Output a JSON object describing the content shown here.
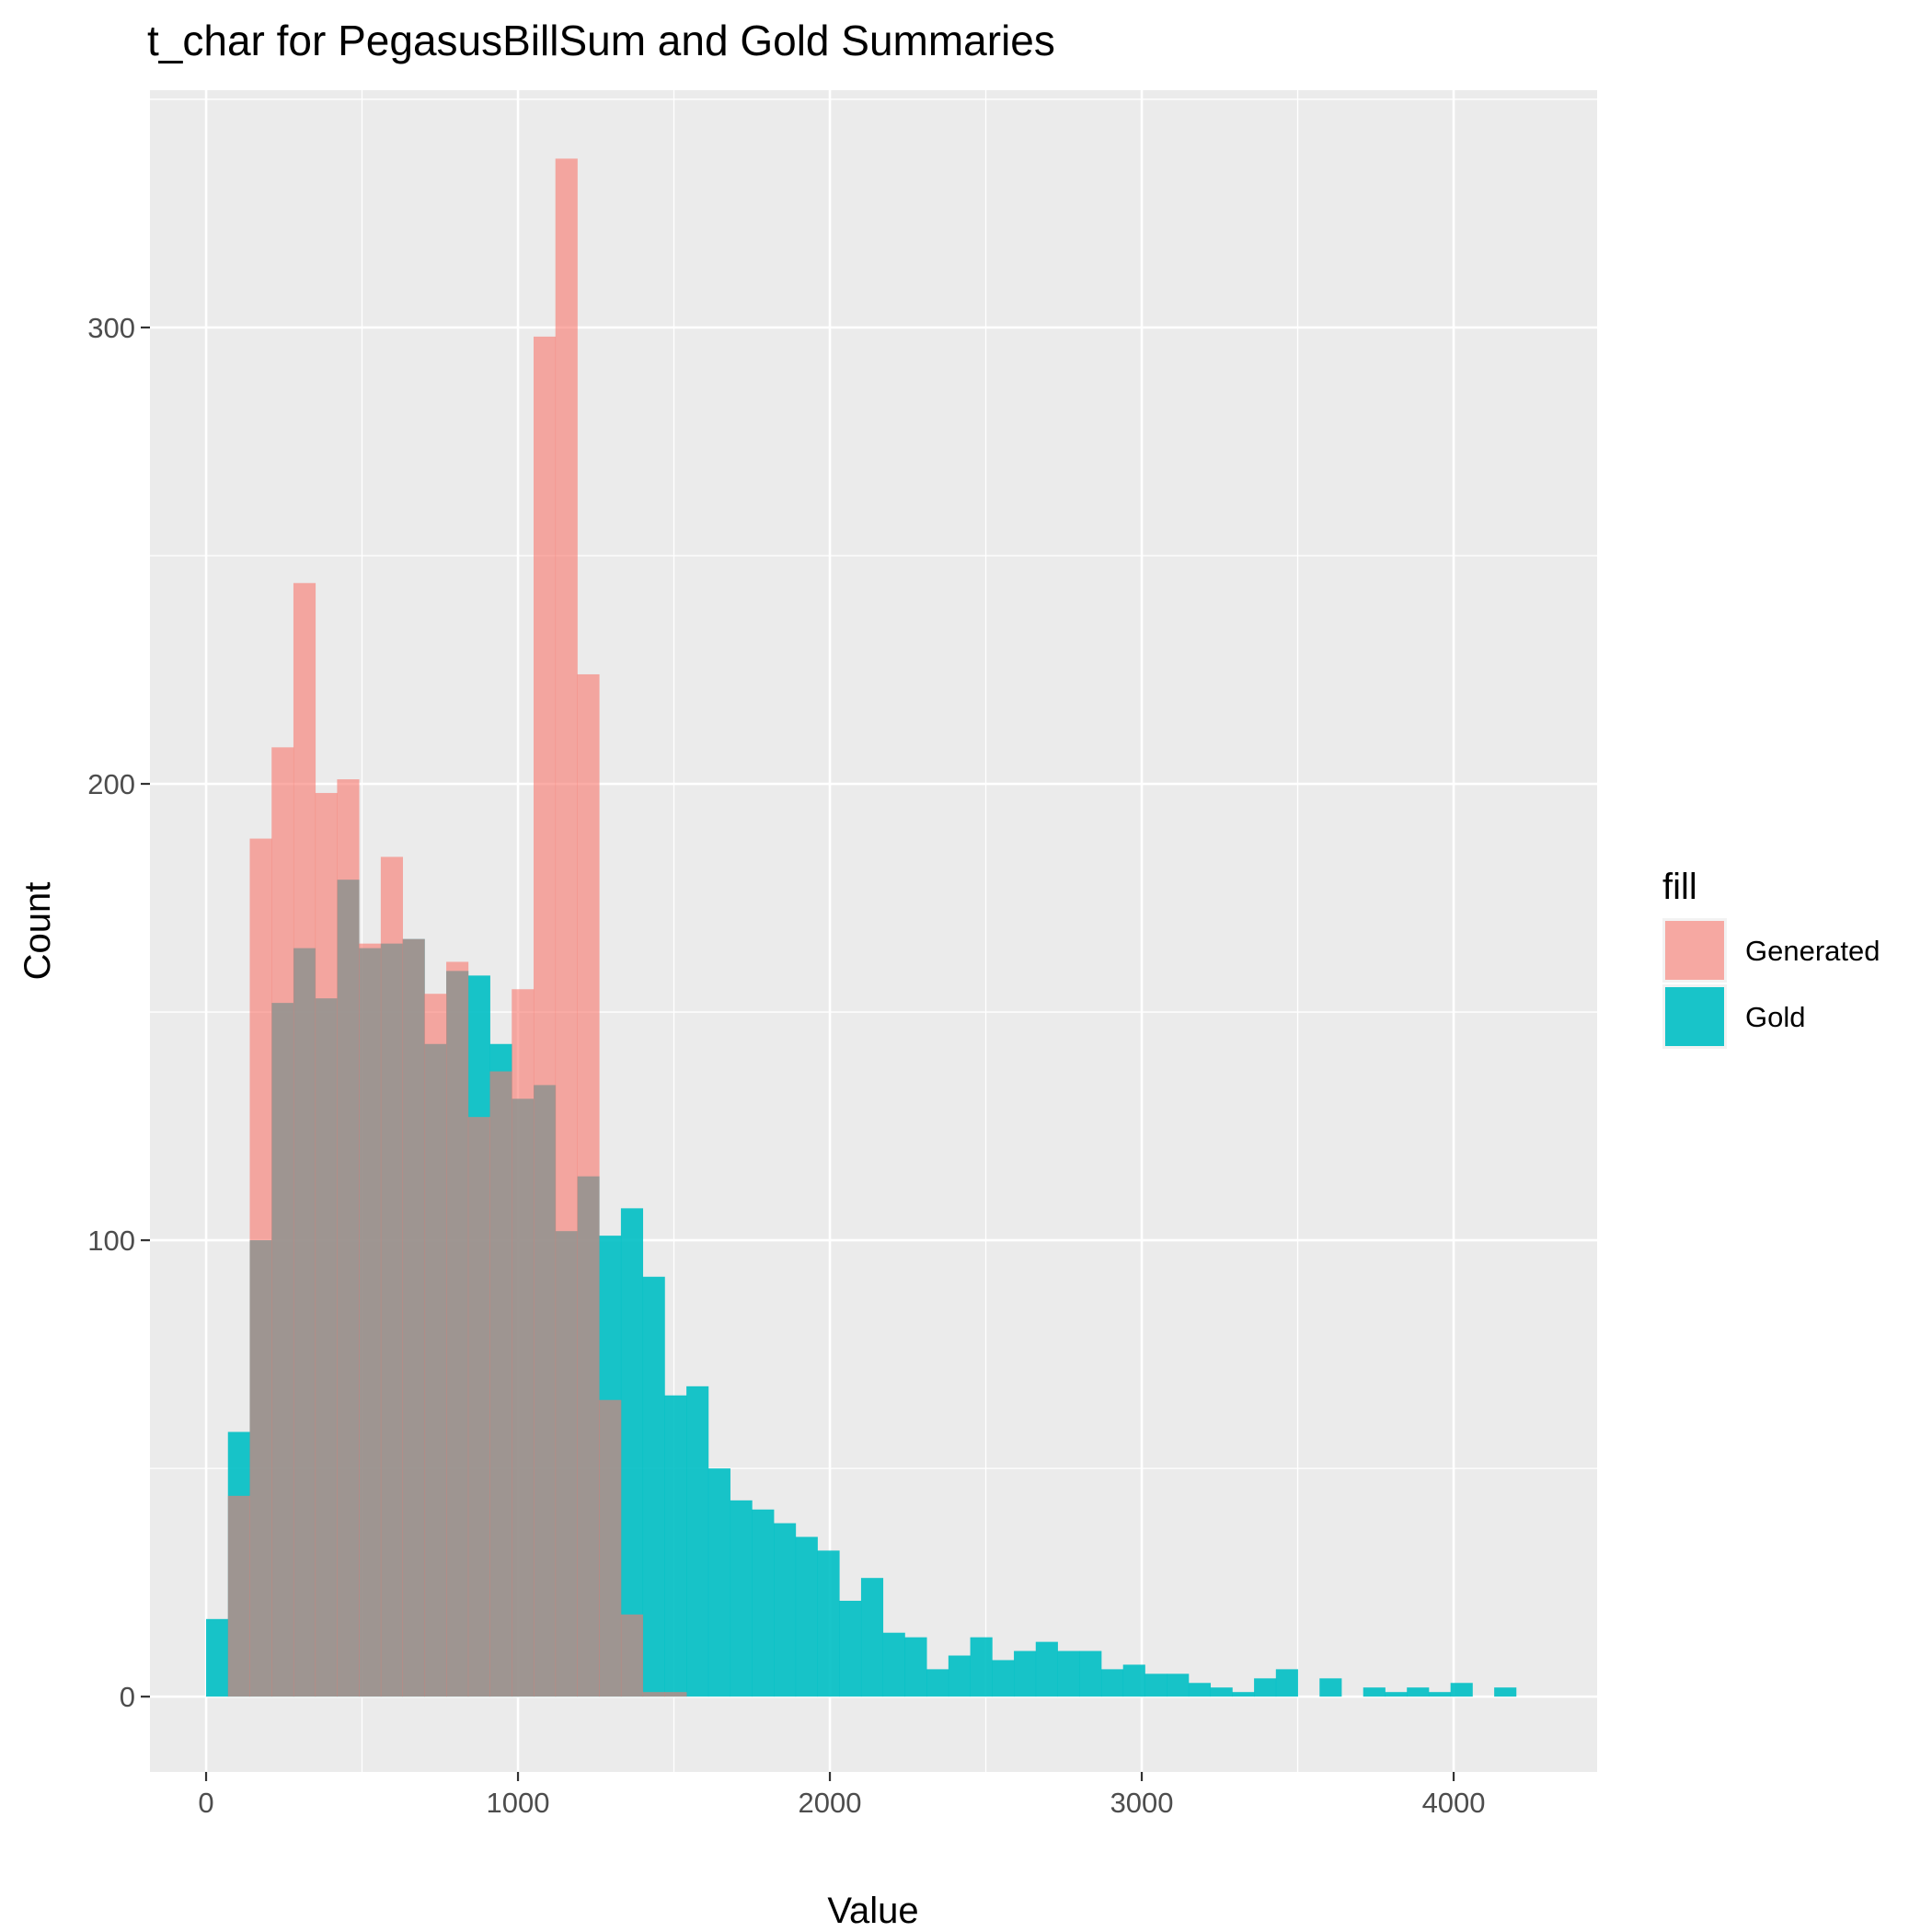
{
  "chart_data": {
    "type": "bar",
    "title": "t_char for PegasusBillSum and Gold Summaries",
    "xlabel": "Value",
    "ylabel": "Count",
    "xlim": [
      -180,
      4460
    ],
    "ylim": [
      -16.5,
      352
    ],
    "x_ticks": [
      0,
      1000,
      2000,
      3000,
      4000
    ],
    "x_tick_labels": [
      "0",
      "1000",
      "2000",
      "3000",
      "4000"
    ],
    "y_ticks": [
      0,
      100,
      200,
      300
    ],
    "y_tick_labels": [
      "0",
      "100",
      "200",
      "300"
    ],
    "grid": true,
    "legend_title": "fill",
    "legend_position": "right",
    "bin_width": 70,
    "series": [
      {
        "name": "Generated",
        "color": "#F8766D",
        "opacity": 0.6,
        "bins": [
          [
            105,
            44
          ],
          [
            175,
            188
          ],
          [
            245,
            208
          ],
          [
            315,
            244
          ],
          [
            385,
            198
          ],
          [
            455,
            201
          ],
          [
            525,
            165
          ],
          [
            595,
            184
          ],
          [
            665,
            166
          ],
          [
            735,
            154
          ],
          [
            805,
            161
          ],
          [
            875,
            127
          ],
          [
            945,
            137
          ],
          [
            1015,
            155
          ],
          [
            1085,
            298
          ],
          [
            1155,
            337
          ],
          [
            1225,
            224
          ],
          [
            1295,
            65
          ],
          [
            1365,
            18
          ],
          [
            1435,
            1
          ],
          [
            1505,
            1
          ]
        ]
      },
      {
        "name": "Gold",
        "color": "#00BFC4",
        "opacity": 0.9,
        "bins": [
          [
            35,
            17
          ],
          [
            105,
            58
          ],
          [
            175,
            100
          ],
          [
            245,
            152
          ],
          [
            315,
            164
          ],
          [
            385,
            153
          ],
          [
            455,
            179
          ],
          [
            525,
            164
          ],
          [
            595,
            165
          ],
          [
            665,
            166
          ],
          [
            735,
            143
          ],
          [
            805,
            159
          ],
          [
            875,
            158
          ],
          [
            945,
            143
          ],
          [
            1015,
            131
          ],
          [
            1085,
            134
          ],
          [
            1155,
            102
          ],
          [
            1225,
            114
          ],
          [
            1295,
            101
          ],
          [
            1365,
            107
          ],
          [
            1435,
            92
          ],
          [
            1505,
            66
          ],
          [
            1575,
            68
          ],
          [
            1645,
            50
          ],
          [
            1715,
            43
          ],
          [
            1785,
            41
          ],
          [
            1855,
            38
          ],
          [
            1925,
            35
          ],
          [
            1995,
            32
          ],
          [
            2065,
            21
          ],
          [
            2135,
            26
          ],
          [
            2205,
            14
          ],
          [
            2275,
            13
          ],
          [
            2345,
            6
          ],
          [
            2415,
            9
          ],
          [
            2485,
            13
          ],
          [
            2555,
            8
          ],
          [
            2625,
            10
          ],
          [
            2695,
            12
          ],
          [
            2765,
            10
          ],
          [
            2835,
            10
          ],
          [
            2905,
            6
          ],
          [
            2975,
            7
          ],
          [
            3045,
            5
          ],
          [
            3115,
            5
          ],
          [
            3185,
            3
          ],
          [
            3255,
            2
          ],
          [
            3325,
            1
          ],
          [
            3395,
            4
          ],
          [
            3465,
            6
          ],
          [
            3605,
            4
          ],
          [
            3745,
            2
          ],
          [
            3815,
            1
          ],
          [
            3885,
            2
          ],
          [
            3955,
            1
          ],
          [
            4025,
            3
          ],
          [
            4165,
            2
          ]
        ]
      }
    ]
  }
}
